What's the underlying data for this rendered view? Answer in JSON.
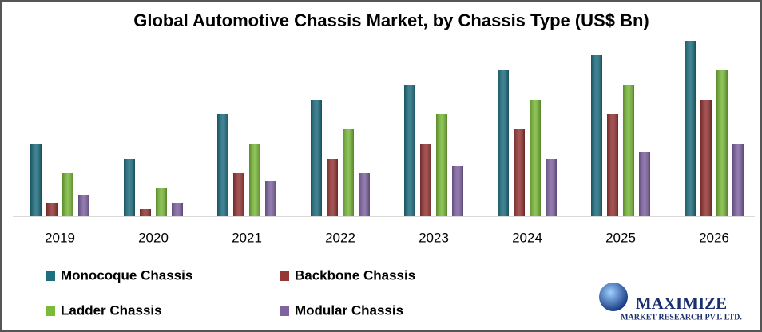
{
  "chart_data": {
    "type": "bar",
    "title": "Global Automotive Chassis Market, by Chassis Type (US$ Bn)",
    "categories": [
      "2019",
      "2020",
      "2021",
      "2022",
      "2023",
      "2024",
      "2025",
      "2026"
    ],
    "series": [
      {
        "name": "Monocoque Chassis",
        "color": "#1f6e80",
        "values": [
          91,
          72,
          128,
          146,
          165,
          183,
          202,
          220
        ]
      },
      {
        "name": "Backbone Chassis",
        "color": "#953735",
        "values": [
          17,
          9,
          54,
          72,
          91,
          109,
          128,
          146
        ]
      },
      {
        "name": "Ladder Chassis",
        "color": "#7ab93a",
        "values": [
          54,
          35,
          91,
          109,
          128,
          146,
          165,
          183
        ]
      },
      {
        "name": "Modular Chassis",
        "color": "#8064a2",
        "values": [
          27,
          17,
          44,
          54,
          63,
          72,
          81,
          91
        ]
      }
    ],
    "ylim": [
      0,
      220
    ],
    "legend": "bottom"
  },
  "logo": {
    "name": "MAXIMIZE",
    "subtitle": "MARKET RESEARCH PVT. LTD."
  }
}
